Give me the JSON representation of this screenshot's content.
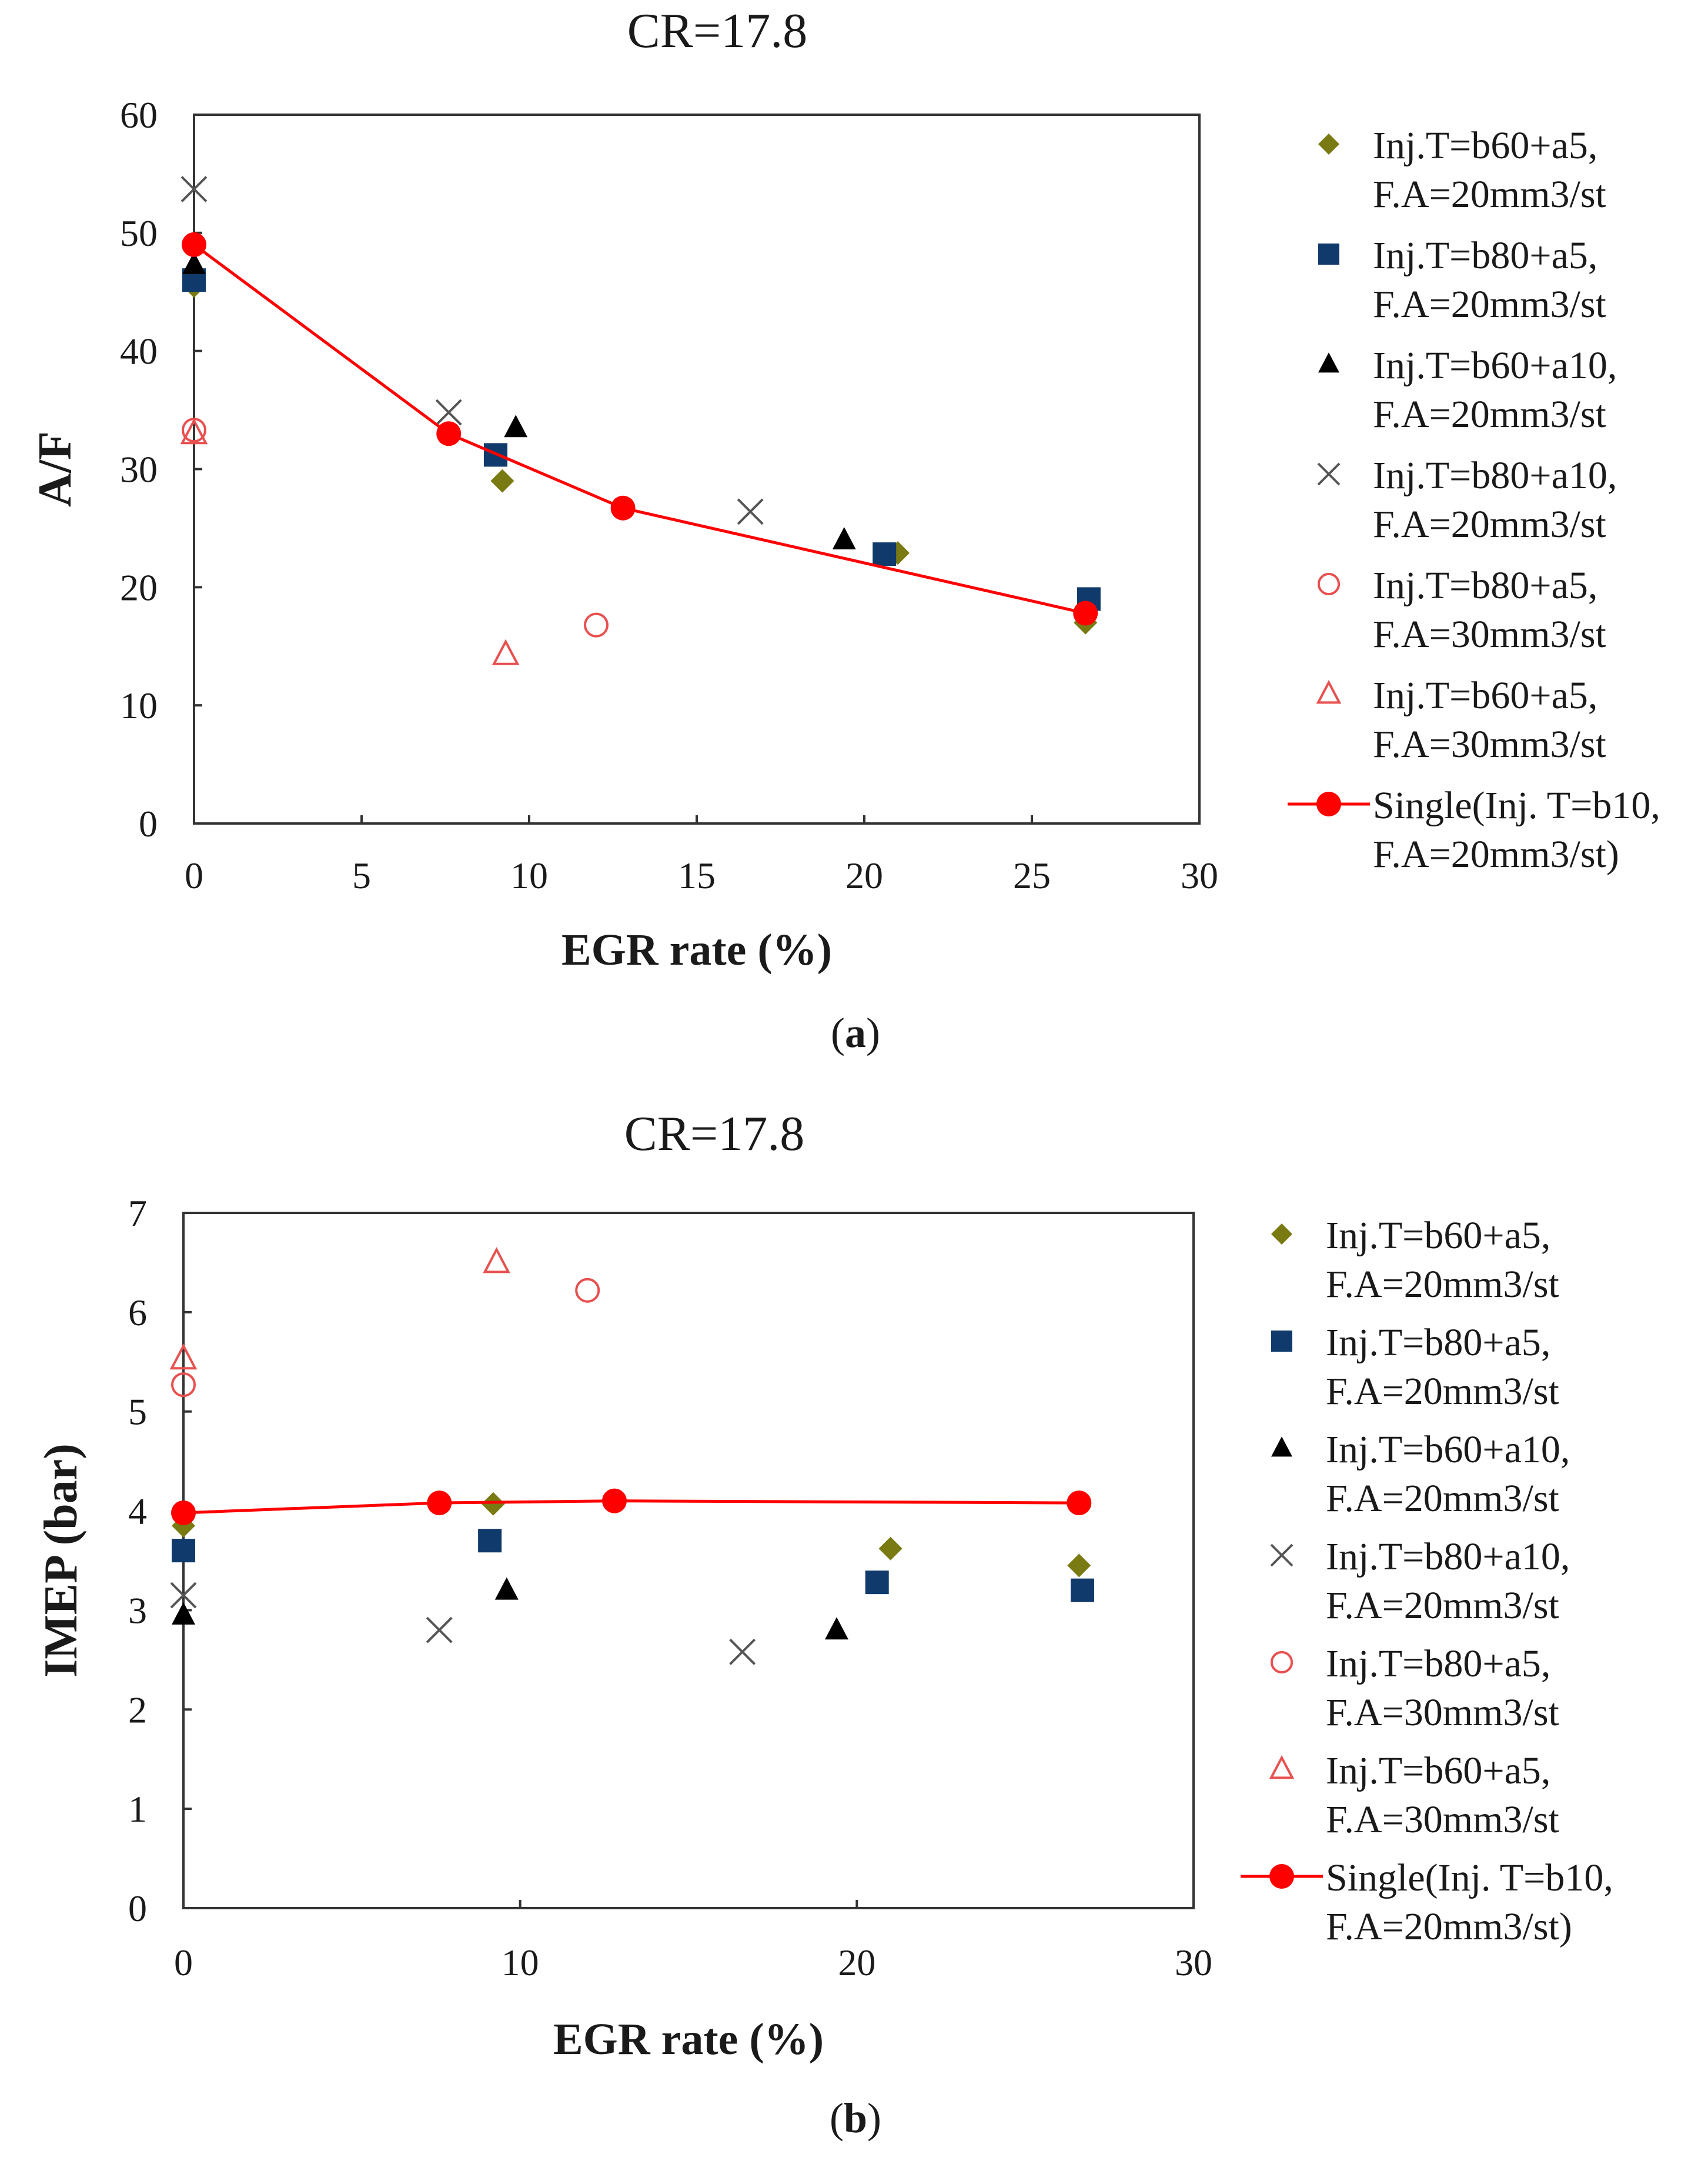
{
  "chart_data": [
    {
      "id": "a",
      "type": "scatter",
      "title": "CR=17.8",
      "xlabel": "EGR rate (%)",
      "ylabel": "A/F",
      "caption_letter": "a",
      "xlim": [
        0,
        30
      ],
      "ylim": [
        0,
        60
      ],
      "xticks": [
        "0",
        "5",
        "10",
        "15",
        "20",
        "25",
        "30"
      ],
      "yticks": [
        "0",
        "10",
        "20",
        "30",
        "40",
        "50",
        "60"
      ],
      "grid": false,
      "legend_position": "right",
      "series": [
        {
          "label1": "Inj.T=b60+a5,",
          "label2": "F.A=20mm3/st",
          "marker": "diamond",
          "color": "#7a7a12",
          "points": [
            [
              0,
              45.5
            ],
            [
              9.2,
              29.0
            ],
            [
              21.0,
              22.9
            ],
            [
              26.6,
              17.0
            ]
          ]
        },
        {
          "label1": "Inj.T=b80+a5,",
          "label2": "F.A=20mm3/st",
          "marker": "square",
          "color": "#0f3a6b",
          "points": [
            [
              0,
              46.0
            ],
            [
              9.0,
              31.2
            ],
            [
              20.6,
              22.8
            ],
            [
              26.7,
              19.0
            ]
          ]
        },
        {
          "label1": "Inj.T=b60+a10,",
          "label2": "F.A=20mm3/st",
          "marker": "triangle",
          "color": "#000000",
          "points": [
            [
              0,
              47.3
            ],
            [
              9.6,
              33.5
            ],
            [
              19.4,
              24.0
            ]
          ]
        },
        {
          "label1": "Inj.T=b80+a10,",
          "label2": "F.A=20mm3/st",
          "marker": "cross",
          "color": "#555555",
          "points": [
            [
              0,
              53.7
            ],
            [
              7.6,
              34.8
            ],
            [
              16.6,
              26.4
            ]
          ]
        },
        {
          "label1": "Inj.T=b80+a5,",
          "label2": "F.A=30mm3/st",
          "marker": "circle-open",
          "color": "#e8504f",
          "points": [
            [
              0,
              33.3
            ],
            [
              12.0,
              16.8
            ]
          ]
        },
        {
          "label1": "Inj.T=b60+a5,",
          "label2": "F.A=30mm3/st",
          "marker": "triangle-open",
          "color": "#e8504f",
          "points": [
            [
              0,
              33.0
            ],
            [
              9.3,
              14.3
            ]
          ]
        },
        {
          "label1": "Single(Inj. T=b10,",
          "label2": "F.A=20mm3/st)",
          "marker": "circle-line",
          "color": "#ff0000",
          "points": [
            [
              0,
              49.0
            ],
            [
              7.6,
              33.0
            ],
            [
              12.8,
              26.7
            ],
            [
              26.6,
              17.8
            ]
          ]
        }
      ]
    },
    {
      "id": "b",
      "type": "scatter",
      "title": "CR=17.8",
      "xlabel": "EGR rate (%)",
      "ylabel": "IMEP (bar)",
      "caption_letter": "b",
      "xlim": [
        0,
        30
      ],
      "ylim": [
        0,
        7
      ],
      "xticks": [
        "0",
        "10",
        "20",
        "30"
      ],
      "yticks": [
        "0",
        "1",
        "2",
        "3",
        "4",
        "5",
        "6",
        "7"
      ],
      "grid": false,
      "legend_position": "right",
      "series": [
        {
          "label1": "Inj.T=b60+a5,",
          "label2": "F.A=20mm3/st",
          "marker": "diamond",
          "color": "#7a7a12",
          "points": [
            [
              0,
              3.85
            ],
            [
              9.2,
              4.07
            ],
            [
              21.0,
              3.62
            ],
            [
              26.6,
              3.45
            ]
          ]
        },
        {
          "label1": "Inj.T=b80+a5,",
          "label2": "F.A=20mm3/st",
          "marker": "square",
          "color": "#0f3a6b",
          "points": [
            [
              0,
              3.6
            ],
            [
              9.1,
              3.7
            ],
            [
              20.6,
              3.28
            ],
            [
              26.7,
              3.2
            ]
          ]
        },
        {
          "label1": "Inj.T=b60+a10,",
          "label2": "F.A=20mm3/st",
          "marker": "triangle",
          "color": "#000000",
          "points": [
            [
              0,
              2.95
            ],
            [
              9.6,
              3.2
            ],
            [
              19.4,
              2.8
            ]
          ]
        },
        {
          "label1": "Inj.T=b80+a10,",
          "label2": "F.A=20mm3/st",
          "marker": "cross",
          "color": "#555555",
          "points": [
            [
              0,
              3.15
            ],
            [
              7.6,
              2.8
            ],
            [
              16.6,
              2.58
            ]
          ]
        },
        {
          "label1": "Inj.T=b80+a5,",
          "label2": "F.A=30mm3/st",
          "marker": "circle-open",
          "color": "#e8504f",
          "points": [
            [
              0,
              5.27
            ],
            [
              12.0,
              6.22
            ]
          ]
        },
        {
          "label1": "Inj.T=b60+a5,",
          "label2": "F.A=30mm3/st",
          "marker": "triangle-open",
          "color": "#e8504f",
          "points": [
            [
              0,
              5.53
            ],
            [
              9.3,
              6.5
            ]
          ]
        },
        {
          "label1": "Single(Inj. T=b10,",
          "label2": "F.A=20mm3/st)",
          "marker": "circle-line",
          "color": "#ff0000",
          "points": [
            [
              0,
              3.98
            ],
            [
              7.6,
              4.08
            ],
            [
              12.8,
              4.1
            ],
            [
              26.6,
              4.08
            ]
          ]
        }
      ]
    }
  ]
}
